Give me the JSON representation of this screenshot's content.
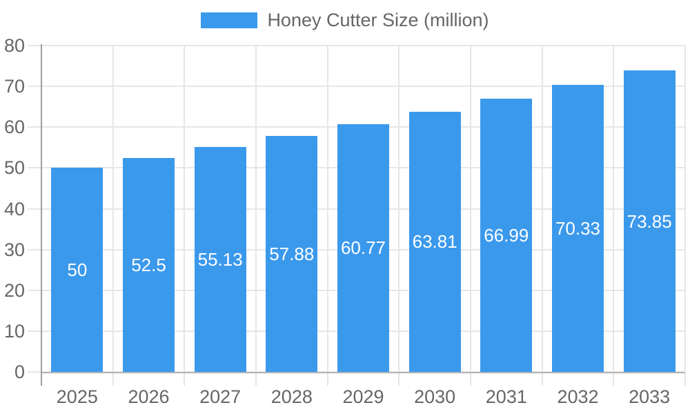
{
  "legend": {
    "label": "Honey Cutter Size (million)"
  },
  "chart_data": {
    "type": "bar",
    "title": "Honey Cutter Size (million)",
    "categories": [
      "2025",
      "2026",
      "2027",
      "2028",
      "2029",
      "2030",
      "2031",
      "2032",
      "2033"
    ],
    "values": [
      50,
      52.5,
      55.13,
      57.88,
      60.77,
      63.81,
      66.99,
      70.33,
      73.85
    ],
    "value_labels": [
      "50",
      "52.5",
      "55.13",
      "57.88",
      "60.77",
      "63.81",
      "66.99",
      "70.33",
      "73.85"
    ],
    "xlabel": "",
    "ylabel": "",
    "ylim": [
      0,
      80
    ],
    "y_ticks": [
      0,
      10,
      20,
      30,
      40,
      50,
      60,
      70,
      80
    ],
    "y_tick_labels": [
      "0",
      "10",
      "20",
      "30",
      "40",
      "50",
      "60",
      "70",
      "80"
    ],
    "grid": true,
    "legend_position": "top",
    "colors": {
      "bar": "#3B99EC",
      "bar_label_text": "#FFFFFF",
      "grid": "#E6E6E6",
      "y_axis_line": "#9E9E9E",
      "x_axis_line": "#B3B3B3",
      "axis_text": "#666666",
      "legend_text": "#666666"
    }
  }
}
